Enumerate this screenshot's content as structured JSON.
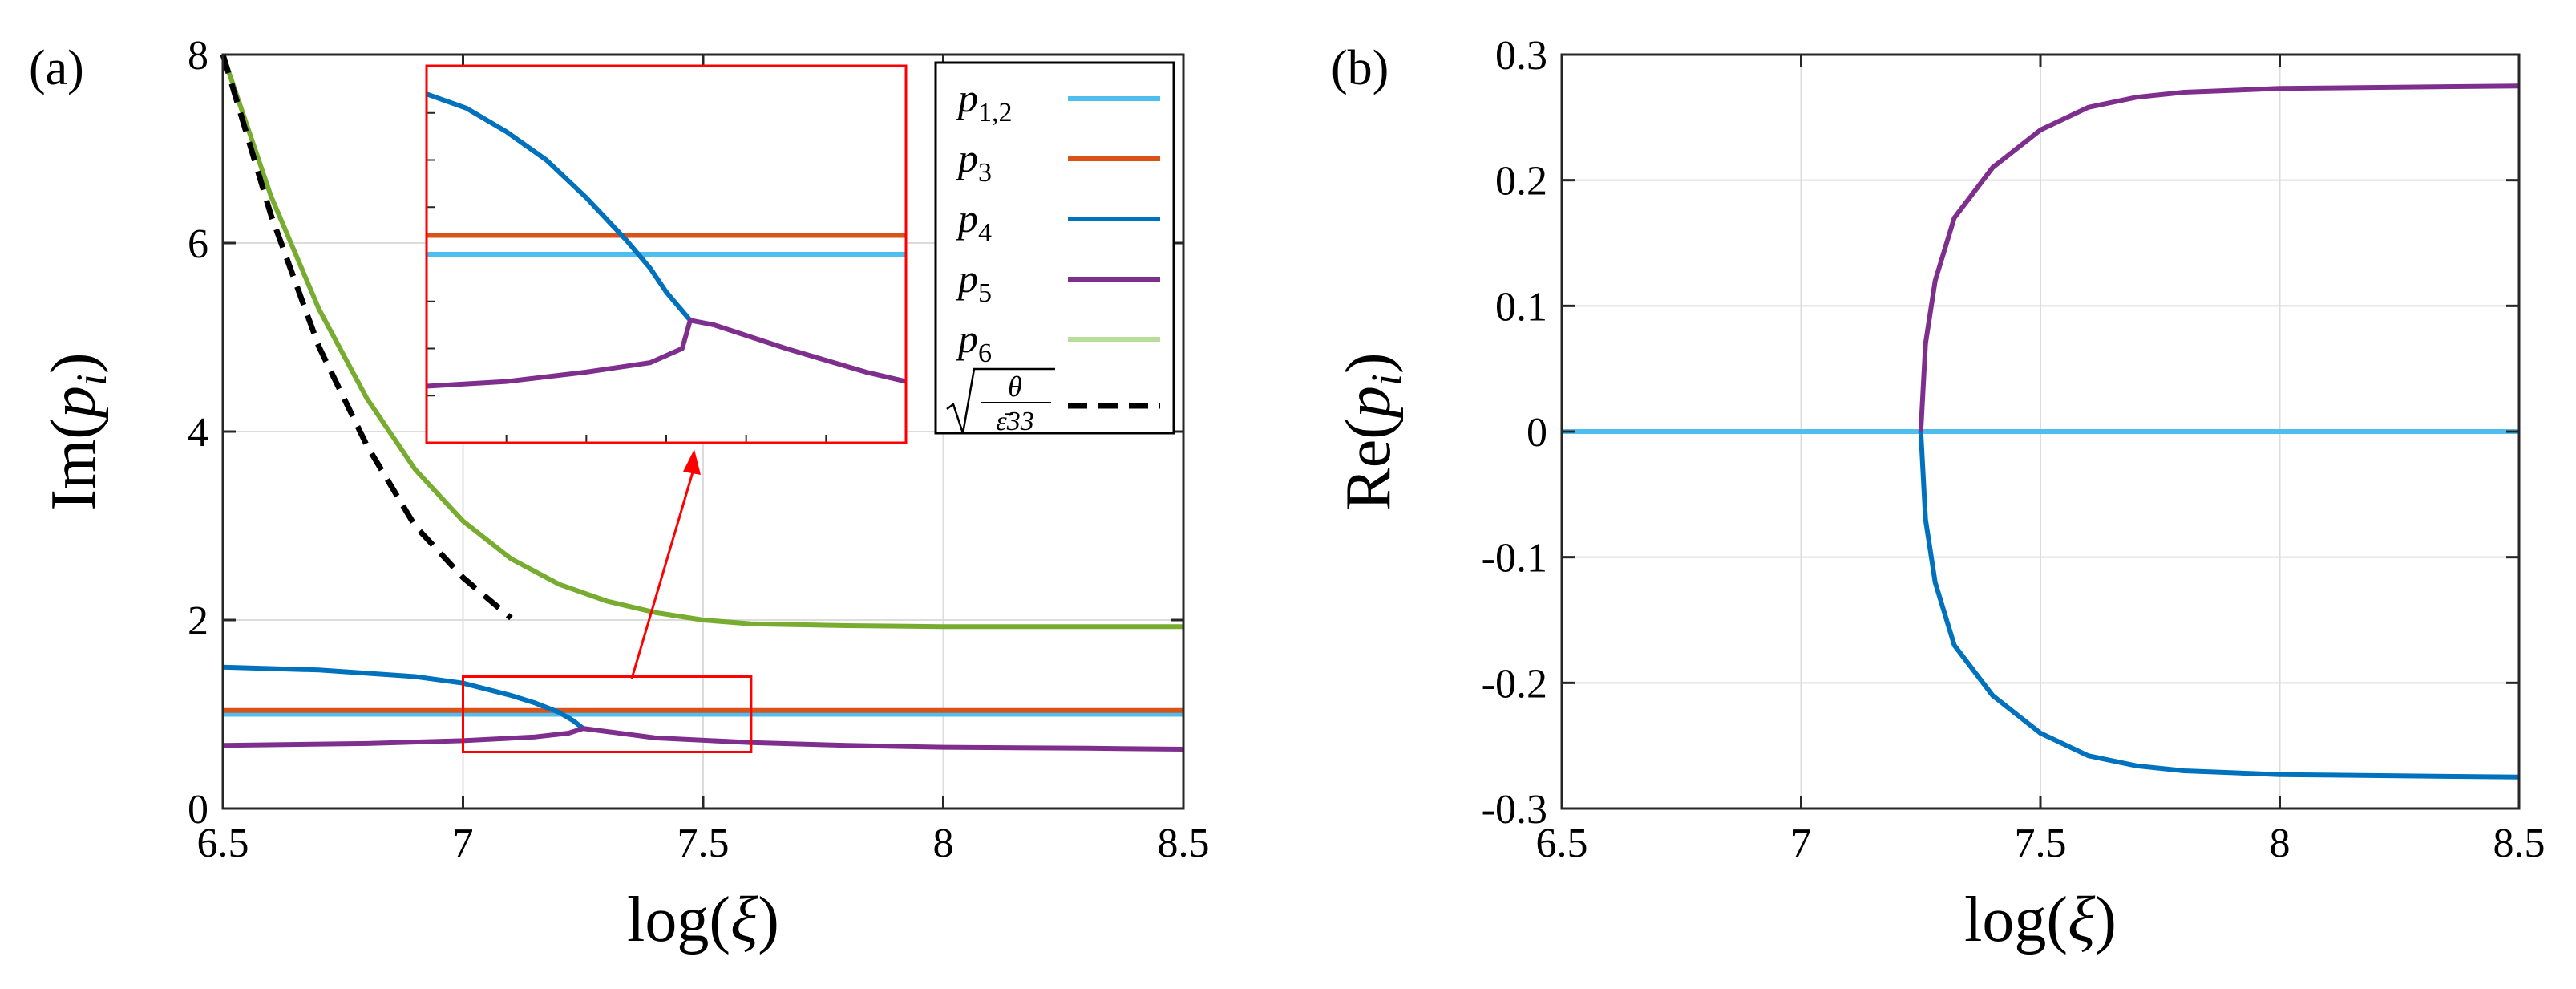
{
  "colors": {
    "p12": "#4dbeee",
    "p3": "#d95319",
    "p4": "#0072bd",
    "p5": "#7e2f8e",
    "p6": "#77ac30",
    "p6_legend": "#b7dd9a",
    "approx": "#000000",
    "inset": "#ff0000",
    "grid": "#dcdcdc"
  },
  "chart_data": [
    {
      "panel": "(a)",
      "type": "line",
      "xlabel": "log(ξ)",
      "ylabel": "Im(p_i)",
      "xlim": [
        6.5,
        8.5
      ],
      "ylim": [
        0,
        8
      ],
      "xticks": [
        "6.5",
        "7",
        "7.5",
        "8",
        "8.5"
      ],
      "yticks": [
        "0",
        "2",
        "4",
        "6",
        "8"
      ],
      "grid": true,
      "legend_position": "top-right",
      "legend": [
        "p1,2",
        "p3",
        "p4",
        "p5",
        "p6",
        "sqrt(θ/ε̄33)"
      ],
      "series": [
        {
          "name": "p1,2",
          "color_key": "p12",
          "x": [
            6.5,
            8.5
          ],
          "y": [
            1.0,
            1.0
          ]
        },
        {
          "name": "p3",
          "color_key": "p3",
          "x": [
            6.5,
            8.5
          ],
          "y": [
            1.04,
            1.04
          ]
        },
        {
          "name": "p4",
          "color_key": "p4",
          "x": [
            6.5,
            6.7,
            6.9,
            7.0,
            7.1,
            7.15,
            7.2,
            7.23,
            7.25
          ],
          "y": [
            1.5,
            1.47,
            1.4,
            1.33,
            1.2,
            1.12,
            1.02,
            0.93,
            0.85
          ]
        },
        {
          "name": "p5",
          "color_key": "p5",
          "x": [
            6.5,
            6.8,
            7.0,
            7.15,
            7.22,
            7.25,
            7.4,
            7.6,
            7.8,
            8.0,
            8.3,
            8.5
          ],
          "y": [
            0.67,
            0.69,
            0.72,
            0.76,
            0.8,
            0.85,
            0.75,
            0.7,
            0.67,
            0.65,
            0.64,
            0.63
          ]
        },
        {
          "name": "p6",
          "color_key": "p6",
          "x": [
            6.5,
            6.6,
            6.7,
            6.8,
            6.9,
            7.0,
            7.1,
            7.2,
            7.3,
            7.4,
            7.5,
            7.6,
            7.8,
            8.0,
            8.5
          ],
          "y": [
            8.0,
            6.5,
            5.3,
            4.35,
            3.6,
            3.05,
            2.65,
            2.38,
            2.2,
            2.08,
            2.0,
            1.96,
            1.94,
            1.93,
            1.93
          ]
        },
        {
          "name": "sqrt(θ/ε̄33)",
          "color_key": "approx",
          "dashed": true,
          "x": [
            6.5,
            6.6,
            6.7,
            6.8,
            6.9,
            7.0,
            7.1
          ],
          "y": [
            8.0,
            6.3,
            4.9,
            3.85,
            3.0,
            2.45,
            2.02
          ]
        }
      ],
      "zoom_box": {
        "x": [
          7.0,
          7.6
        ],
        "y": [
          0.6,
          1.4
        ]
      },
      "inset_series": [
        {
          "name": "p3",
          "color_key": "p3",
          "x": [
            7.0,
            7.6
          ],
          "y": [
            1.04,
            1.04
          ]
        },
        {
          "name": "p1,2",
          "color_key": "p12",
          "x": [
            7.0,
            7.6
          ],
          "y": [
            1.0,
            1.0
          ]
        },
        {
          "name": "p4",
          "color_key": "p4",
          "x": [
            7.0,
            7.05,
            7.1,
            7.15,
            7.2,
            7.25,
            7.28,
            7.3,
            7.32,
            7.33
          ],
          "y": [
            1.34,
            1.31,
            1.26,
            1.2,
            1.12,
            1.03,
            0.97,
            0.92,
            0.88,
            0.86
          ]
        },
        {
          "name": "p5",
          "color_key": "p5",
          "x": [
            7.0,
            7.1,
            7.2,
            7.28,
            7.32,
            7.33,
            7.36,
            7.45,
            7.55,
            7.6
          ],
          "y": [
            0.72,
            0.73,
            0.75,
            0.77,
            0.8,
            0.86,
            0.85,
            0.8,
            0.75,
            0.73
          ]
        }
      ]
    },
    {
      "panel": "(b)",
      "type": "line",
      "xlabel": "log(ξ)",
      "ylabel": "Re(p_i)",
      "xlim": [
        6.5,
        8.5
      ],
      "ylim": [
        -0.3,
        0.3
      ],
      "xticks": [
        "6.5",
        "7",
        "7.5",
        "8",
        "8.5"
      ],
      "yticks": [
        "-0.3",
        "-0.2",
        "-0.1",
        "0",
        "0.1",
        "0.2",
        "0.3"
      ],
      "grid": true,
      "series": [
        {
          "name": "p1,2",
          "color_key": "p12",
          "x": [
            6.5,
            8.5
          ],
          "y": [
            0,
            0
          ]
        },
        {
          "name": "p5",
          "color_key": "p5",
          "x": [
            7.25,
            7.26,
            7.28,
            7.32,
            7.4,
            7.5,
            7.6,
            7.7,
            7.8,
            8.0,
            8.5
          ],
          "y": [
            0,
            0.07,
            0.12,
            0.17,
            0.21,
            0.24,
            0.258,
            0.266,
            0.27,
            0.273,
            0.275
          ]
        },
        {
          "name": "p4",
          "color_key": "p4",
          "x": [
            7.25,
            7.26,
            7.28,
            7.32,
            7.4,
            7.5,
            7.6,
            7.7,
            7.8,
            8.0,
            8.5
          ],
          "y": [
            0,
            -0.07,
            -0.12,
            -0.17,
            -0.21,
            -0.24,
            -0.258,
            -0.266,
            -0.27,
            -0.273,
            -0.275
          ]
        }
      ]
    }
  ]
}
